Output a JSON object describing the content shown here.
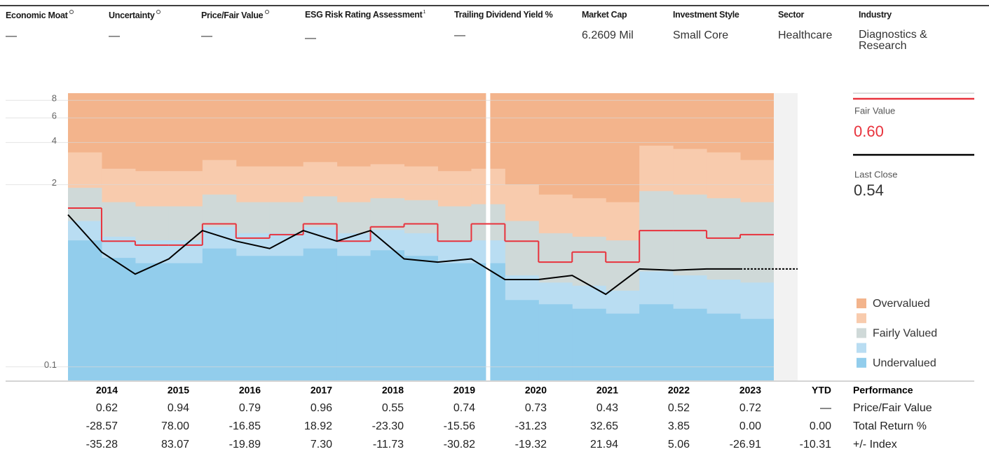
{
  "header": [
    {
      "label": "Economic Moat",
      "value": "—"
    },
    {
      "label": "Uncertainty",
      "value": "—"
    },
    {
      "label": "Price/Fair Value",
      "value": "—"
    },
    {
      "label": "ESG Risk Rating Assessment",
      "note": "1",
      "value": "—"
    },
    {
      "label": "Trailing Dividend Yield %",
      "value": "—"
    },
    {
      "label": "Market Cap",
      "value": "6.2609 Mil"
    },
    {
      "label": "Investment Style",
      "value": "Small Core"
    },
    {
      "label": "Sector",
      "value": "Healthcare"
    },
    {
      "label": "Industry",
      "value": "Diagnostics & Research"
    }
  ],
  "chart_data": {
    "type": "valuation",
    "log_scale": true,
    "x": [
      2013.5,
      2014,
      2014.5,
      2015,
      2015.5,
      2016,
      2016.5,
      2017,
      2017.5,
      2018,
      2018.5,
      2019,
      2019.5,
      2020,
      2020.5,
      2021,
      2021.5,
      2022,
      2022.5,
      2023,
      2023.5
    ],
    "xlim": [
      2013.5,
      2024.0
    ],
    "ylim": [
      0.08,
      9
    ],
    "yticks": [
      0.1,
      2,
      4,
      6,
      8
    ],
    "grid": true,
    "bands": [
      {
        "name": "Undervalued",
        "color": "#92cdec",
        "values": [
          0.8,
          0.6,
          0.55,
          0.55,
          0.7,
          0.62,
          0.62,
          0.7,
          0.62,
          0.68,
          0.62,
          0.55,
          0.55,
          0.3,
          0.28,
          0.26,
          0.24,
          0.28,
          0.26,
          0.24,
          0.22
        ]
      },
      {
        "color": "#b9ddf2",
        "values": [
          1.1,
          0.85,
          0.8,
          0.8,
          1.0,
          0.9,
          0.9,
          1.0,
          0.9,
          0.95,
          0.9,
          0.8,
          0.8,
          0.45,
          0.4,
          0.38,
          0.35,
          0.48,
          0.45,
          0.42,
          0.4
        ]
      },
      {
        "name": "Fairly Valued",
        "color": "#cfd9d8",
        "values": [
          1.9,
          1.5,
          1.4,
          1.4,
          1.7,
          1.5,
          1.5,
          1.65,
          1.5,
          1.6,
          1.55,
          1.4,
          1.45,
          1.1,
          0.9,
          0.85,
          0.8,
          1.8,
          1.7,
          1.6,
          1.5
        ]
      },
      {
        "color": "#f8cbad",
        "values": [
          3.4,
          2.6,
          2.5,
          2.5,
          3.0,
          2.7,
          2.7,
          2.9,
          2.7,
          2.8,
          2.7,
          2.5,
          2.6,
          2.0,
          1.7,
          1.6,
          1.5,
          3.8,
          3.6,
          3.4,
          3.0
        ]
      },
      {
        "name": "Overvalued",
        "color": "#f3b48c"
      }
    ],
    "series": [
      {
        "name": "Fair Value",
        "color": "#e8323c",
        "value": "0.60",
        "values": [
          1.36,
          0.79,
          0.74,
          0.74,
          1.05,
          0.83,
          0.88,
          1.05,
          0.79,
          1.0,
          1.05,
          0.79,
          1.05,
          0.79,
          0.56,
          0.66,
          0.56,
          0.94,
          0.94,
          0.83,
          0.88
        ]
      },
      {
        "name": "Last Close",
        "color": "#000000",
        "value": "0.54",
        "values": [
          1.22,
          0.66,
          0.46,
          0.59,
          0.94,
          0.79,
          0.7,
          0.94,
          0.79,
          0.94,
          0.59,
          0.56,
          0.59,
          0.42,
          0.42,
          0.45,
          0.33,
          0.5,
          0.49,
          0.5,
          0.5
        ]
      }
    ]
  },
  "table": {
    "columns": [
      "2014",
      "2015",
      "2016",
      "2017",
      "2018",
      "2019",
      "2020",
      "2021",
      "2022",
      "2023",
      "YTD"
    ],
    "title": "Performance",
    "rows": [
      {
        "label": "Price/Fair Value",
        "values": [
          "0.62",
          "0.94",
          "0.79",
          "0.96",
          "0.55",
          "0.74",
          "0.73",
          "0.43",
          "0.52",
          "0.72",
          "—"
        ]
      },
      {
        "label": "Total Return %",
        "values": [
          "-28.57",
          "78.00",
          "-16.85",
          "18.92",
          "-23.30",
          "-15.56",
          "-31.23",
          "32.65",
          "3.85",
          "0.00",
          "0.00"
        ]
      },
      {
        "label": "+/- Index",
        "values": [
          "-35.28",
          "83.07",
          "-19.89",
          "7.30",
          "-11.73",
          "-30.82",
          "-19.32",
          "21.94",
          "5.06",
          "-26.91",
          "-10.31"
        ]
      }
    ]
  }
}
